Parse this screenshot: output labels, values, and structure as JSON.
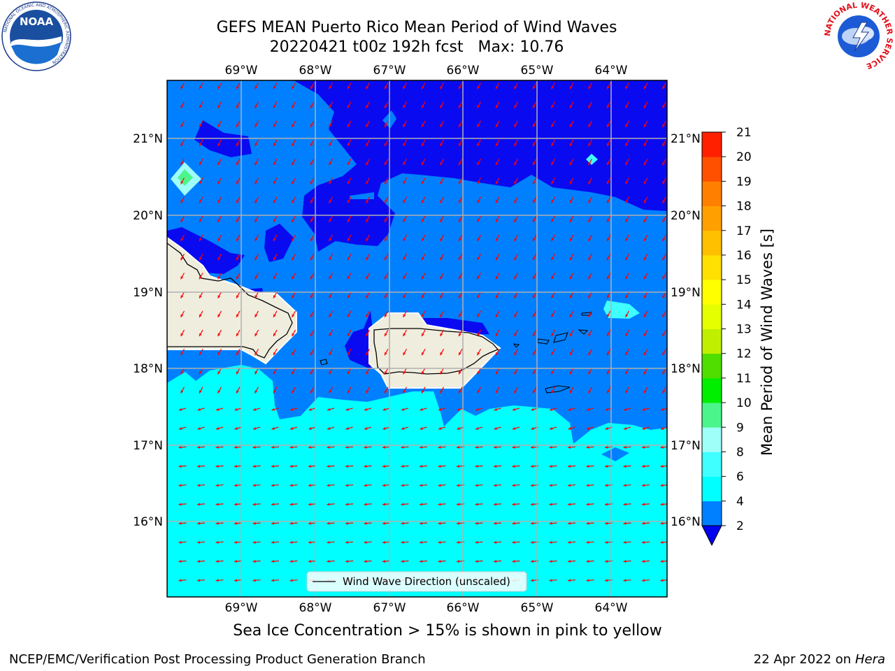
{
  "header": {
    "title_line1": "GEFS MEAN Puerto Rico Mean Period of Wind Waves",
    "title_line2": "20220421 t00z 192h fcst   Max: 10.76"
  },
  "logos": {
    "left": {
      "name": "NOAA",
      "text": "NOAA",
      "ring_text": "NATIONAL OCEANIC AND ATMOSPHERIC ADMINISTRATION"
    },
    "right": {
      "name": "NATIONAL WEATHER SERVICE",
      "ring_text": "NATIONAL WEATHER SERVICE"
    }
  },
  "map": {
    "lon_labels": [
      "69°W",
      "68°W",
      "67°W",
      "66°W",
      "65°W",
      "64°W"
    ],
    "lat_labels": [
      "21°N",
      "20°N",
      "19°N",
      "18°N",
      "17°N",
      "16°N"
    ],
    "lon_range": [
      -70.0,
      -63.25
    ],
    "lat_range": [
      15.0,
      21.75
    ],
    "grid": true,
    "legend": {
      "label": "Wind Wave Direction (unscaled)",
      "placement": "bottom-center"
    },
    "colors": {
      "land": "#efedde",
      "deep_blue": "#0a0af0",
      "mid_blue": "#0080ff",
      "cyan": "#00ffff",
      "light_cyan": "#7ffff7",
      "arrow": "#ff0000",
      "grid": "#b0b0b0"
    },
    "arrow_direction": {
      "north_of_17.7N": "toward south-southwest",
      "south_of_17.7N": "toward west"
    }
  },
  "colorbar": {
    "title": "Mean Period of Wind Waves [s]",
    "ticks": [
      "21",
      "20",
      "19",
      "18",
      "17",
      "16",
      "15",
      "14",
      "13",
      "12",
      "11",
      "10",
      "9",
      "8",
      "6",
      "4",
      "2"
    ],
    "levels": [
      {
        "from": 2,
        "to": 4,
        "color": "#0080ff"
      },
      {
        "from": 4,
        "to": 6,
        "color": "#00ffff"
      },
      {
        "from": 6,
        "to": 8,
        "color": "#40ffff"
      },
      {
        "from": 8,
        "to": 9,
        "color": "#9ffff9"
      },
      {
        "from": 9,
        "to": 10,
        "color": "#4cf58c"
      },
      {
        "from": 10,
        "to": 11,
        "color": "#00ee00"
      },
      {
        "from": 11,
        "to": 12,
        "color": "#50dd00"
      },
      {
        "from": 12,
        "to": 13,
        "color": "#c0f000"
      },
      {
        "from": 13,
        "to": 14,
        "color": "#e6ff00"
      },
      {
        "from": 14,
        "to": 15,
        "color": "#ffff00"
      },
      {
        "from": 15,
        "to": 16,
        "color": "#ffe000"
      },
      {
        "from": 16,
        "to": 17,
        "color": "#ffc000"
      },
      {
        "from": 17,
        "to": 18,
        "color": "#ffa000"
      },
      {
        "from": 18,
        "to": 19,
        "color": "#ff8000"
      },
      {
        "from": 19,
        "to": 20,
        "color": "#ff5000"
      },
      {
        "from": 20,
        "to": 21,
        "color": "#ff2000"
      }
    ],
    "under_color": "#0000ee"
  },
  "footer": {
    "note": "Sea Ice Concentration > 15% is shown in pink to yellow",
    "credit_left": "NCEP/EMC/Verification Post Processing Product Generation Branch",
    "credit_date": "22 Apr 2022 on ",
    "credit_host": "Hera"
  }
}
